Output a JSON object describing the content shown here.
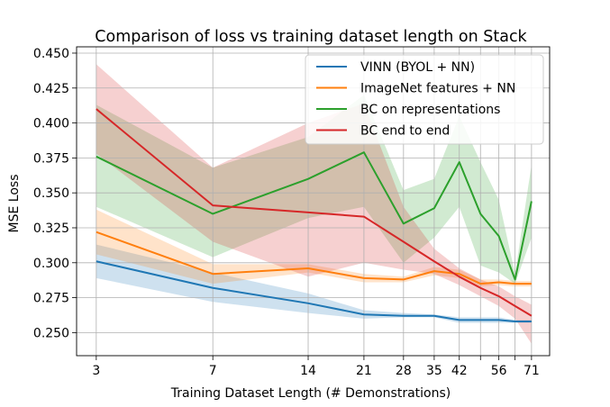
{
  "chart_data": {
    "type": "line",
    "title": "Comparison of loss vs training dataset length on Stack",
    "xlabel": "Training Dataset Length (# Demonstrations)",
    "ylabel": "MSE Loss",
    "x_scale": "log",
    "x_ticks": [
      3,
      7,
      14,
      21,
      28,
      35,
      42,
      56,
      71
    ],
    "x_tick_labels": [
      "3",
      "7",
      "14",
      "21",
      "28",
      "35",
      "42",
      "56",
      "71"
    ],
    "x_extra_gridlines": [
      49,
      63
    ],
    "xlim": [
      2.6,
      81
    ],
    "y_ticks": [
      0.25,
      0.275,
      0.3,
      0.325,
      0.35,
      0.375,
      0.4,
      0.425,
      0.45
    ],
    "y_tick_labels": [
      "0.250",
      "0.275",
      "0.300",
      "0.325",
      "0.350",
      "0.375",
      "0.400",
      "0.425",
      "0.450"
    ],
    "ylim": [
      0.2335,
      0.4545
    ],
    "grid": true,
    "legend_position": "top-right",
    "series": [
      {
        "name": "VINN (BYOL + NN)",
        "color": "#1f77b4",
        "x": [
          3,
          7,
          14,
          21,
          28,
          35,
          42,
          49,
          56,
          63,
          71
        ],
        "y": [
          0.301,
          0.282,
          0.271,
          0.263,
          0.262,
          0.262,
          0.259,
          0.259,
          0.259,
          0.258,
          0.258
        ],
        "upper": [
          0.313,
          0.293,
          0.278,
          0.266,
          0.264,
          0.263,
          0.261,
          0.261,
          0.261,
          0.259,
          0.259
        ],
        "lower": [
          0.289,
          0.272,
          0.264,
          0.26,
          0.261,
          0.261,
          0.257,
          0.257,
          0.257,
          0.257,
          0.257
        ]
      },
      {
        "name": "ImageNet features + NN",
        "color": "#ff7f0e",
        "x": [
          3,
          7,
          14,
          21,
          28,
          35,
          42,
          49,
          56,
          63,
          71
        ],
        "y": [
          0.322,
          0.292,
          0.296,
          0.289,
          0.288,
          0.294,
          0.292,
          0.285,
          0.286,
          0.285,
          0.285
        ],
        "upper": [
          0.338,
          0.299,
          0.299,
          0.292,
          0.29,
          0.297,
          0.295,
          0.288,
          0.288,
          0.287,
          0.287
        ],
        "lower": [
          0.306,
          0.285,
          0.293,
          0.286,
          0.286,
          0.291,
          0.289,
          0.283,
          0.284,
          0.283,
          0.283
        ]
      },
      {
        "name": "BC on representations",
        "color": "#2ca02c",
        "x": [
          3,
          7,
          14,
          21,
          28,
          35,
          42,
          49,
          56,
          63,
          71
        ],
        "y": [
          0.376,
          0.335,
          0.36,
          0.379,
          0.328,
          0.339,
          0.372,
          0.335,
          0.319,
          0.288,
          0.344
        ],
        "upper": [
          0.413,
          0.368,
          0.39,
          0.42,
          0.352,
          0.36,
          0.405,
          0.372,
          0.345,
          0.292,
          0.37
        ],
        "lower": [
          0.34,
          0.304,
          0.332,
          0.34,
          0.3,
          0.318,
          0.34,
          0.298,
          0.293,
          0.285,
          0.318
        ]
      },
      {
        "name": "BC end to end",
        "color": "#d62728",
        "x": [
          3,
          7,
          14,
          21,
          28,
          35,
          42,
          49,
          56,
          63,
          71
        ],
        "y": [
          0.41,
          0.341,
          0.336,
          0.333,
          0.315,
          0.301,
          0.29,
          0.282,
          0.276,
          0.269,
          0.262
        ],
        "upper": [
          0.442,
          0.368,
          0.4,
          0.414,
          0.34,
          0.31,
          0.296,
          0.288,
          0.283,
          0.276,
          0.27
        ],
        "lower": [
          0.378,
          0.315,
          0.29,
          0.3,
          0.295,
          0.292,
          0.284,
          0.276,
          0.269,
          0.26,
          0.242
        ]
      }
    ]
  }
}
